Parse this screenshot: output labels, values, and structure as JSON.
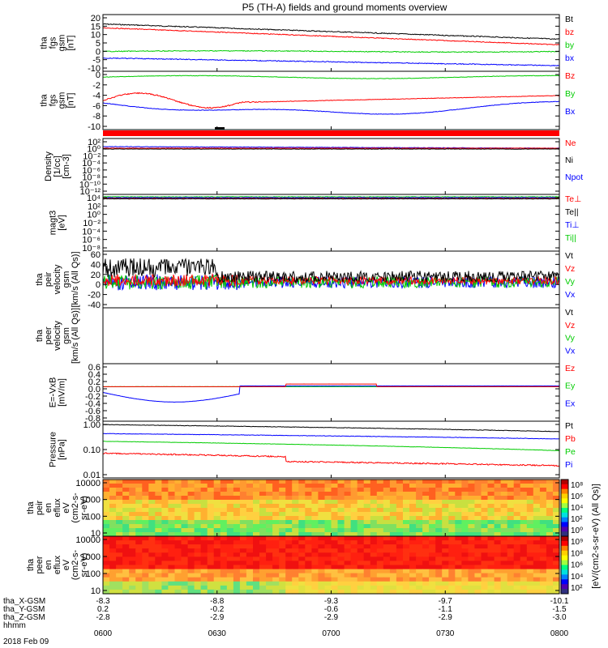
{
  "chart_data": {
    "type": "line",
    "title": "P5 (TH-A) fields and ground moments overview",
    "xlabel": "hhmm",
    "date": "2018 Feb 09",
    "x_ticks": [
      "0600",
      "0630",
      "0700",
      "0730",
      "0800"
    ],
    "ephemeris": [
      {
        "label": "tha_X-GSM",
        "values": [
          "-8.3",
          "-8.8",
          "-9.3",
          "-9.7",
          "-10.1"
        ]
      },
      {
        "label": "tha_Y-GSM",
        "values": [
          "0.2",
          "-0.2",
          "-0.6",
          "-1.1",
          "-1.5"
        ]
      },
      {
        "label": "tha_Z-GSM",
        "values": [
          "-2.8",
          "-2.9",
          "-2.9",
          "-2.9",
          "-3.0"
        ]
      }
    ],
    "panels": [
      {
        "id": "fgs_gsm",
        "ylabel": [
          "tha",
          "fgs",
          "gsm",
          "[nT]"
        ],
        "ylim": [
          -10,
          20
        ],
        "yticks": [
          "20",
          "15",
          "10",
          "5",
          "0",
          "-5",
          "-10"
        ],
        "legend": [
          {
            "name": "Bt",
            "color": "#000000"
          },
          {
            "name": "bz",
            "color": "#ff0000"
          },
          {
            "name": "by",
            "color": "#00cc00"
          },
          {
            "name": "bx",
            "color": "#0000ff"
          }
        ]
      },
      {
        "id": "fgs_dsl",
        "ylabel": [
          "tha",
          "fgs",
          "gsm",
          "[nT]"
        ],
        "ylim": [
          -11,
          1
        ],
        "yticks": [
          "0",
          "-2",
          "-4",
          "-6",
          "-8",
          "-10"
        ],
        "legend": [
          {
            "name": "Bz",
            "color": "#ff0000"
          },
          {
            "name": "By",
            "color": "#00cc00"
          },
          {
            "name": "Bx",
            "color": "#0000ff"
          }
        ]
      },
      {
        "id": "density",
        "ylabel": [
          "Density",
          "[1/cc]",
          "[cm-3]"
        ],
        "log": true,
        "yticks": [
          "10²",
          "10⁰",
          "10⁻²",
          "10⁻⁴",
          "10⁻⁶",
          "10⁻⁸",
          "10⁻¹⁰",
          "10⁻¹²"
        ],
        "legend": [
          {
            "name": "Ne",
            "color": "#ff0000"
          },
          {
            "name": "Ni",
            "color": "#000000"
          },
          {
            "name": "Npot",
            "color": "#0000ff"
          }
        ]
      },
      {
        "id": "temperature",
        "ylabel": [
          "magt3",
          "[eV]"
        ],
        "log": true,
        "yticks": [
          "10⁴",
          "10²",
          "10⁰",
          "10⁻²",
          "10⁻⁴",
          "10⁻⁶",
          "10⁻⁸"
        ],
        "legend": [
          {
            "name": "Te⊥",
            "color": "#ff0000"
          },
          {
            "name": "Te||",
            "color": "#000000"
          },
          {
            "name": "Ti⊥",
            "color": "#0000ff"
          },
          {
            "name": "Ti||",
            "color": "#00cc00"
          }
        ]
      },
      {
        "id": "peir_velocity",
        "ylabel": [
          "tha",
          "peir",
          "velocity",
          "gsm",
          "[km/s (All Qs)]"
        ],
        "ylim": [
          -40,
          60
        ],
        "yticks": [
          "60",
          "40",
          "20",
          "0",
          "-20",
          "-40"
        ],
        "legend": [
          {
            "name": "Vt",
            "color": "#000000"
          },
          {
            "name": "Vz",
            "color": "#ff0000"
          },
          {
            "name": "Vy",
            "color": "#00cc00"
          },
          {
            "name": "Vx",
            "color": "#0000ff"
          }
        ]
      },
      {
        "id": "peer_velocity",
        "ylabel": [
          "tha",
          "peer",
          "velocity",
          "gsm",
          "[km/s (All Qs)]"
        ],
        "yticks": [],
        "legend": [
          {
            "name": "Vt",
            "color": "#000000"
          },
          {
            "name": "Vz",
            "color": "#ff0000"
          },
          {
            "name": "Vy",
            "color": "#00cc00"
          },
          {
            "name": "Vx",
            "color": "#0000ff"
          }
        ]
      },
      {
        "id": "efield",
        "ylabel": [
          "E=-VxB",
          "[mV/m]"
        ],
        "ylim": [
          -0.9,
          0.6
        ],
        "yticks": [
          "0.6",
          "0.4",
          "0.2",
          "0.0",
          "-0.2",
          "-0.4",
          "-0.6",
          "-0.8"
        ],
        "legend": [
          {
            "name": "Ez",
            "color": "#ff0000"
          },
          {
            "name": "Ey",
            "color": "#00cc00"
          },
          {
            "name": "Ex",
            "color": "#0000ff"
          }
        ]
      },
      {
        "id": "pressure",
        "ylabel": [
          "Pressure",
          "[nPa]"
        ],
        "log": true,
        "ylim": [
          0.01,
          1.2
        ],
        "yticks": [
          "1.00",
          "0.10",
          "0.01"
        ],
        "legend": [
          {
            "name": "Pt",
            "color": "#000000"
          },
          {
            "name": "Pb",
            "color": "#ff0000"
          },
          {
            "name": "Pe",
            "color": "#00cc00"
          },
          {
            "name": "Pi",
            "color": "#0000ff"
          }
        ]
      },
      {
        "id": "peir_eflux",
        "type": "heatmap",
        "ylabel": [
          "tha",
          "peir",
          "en",
          "eflux",
          "eV",
          "(cm2-s-",
          "sr-eV)"
        ],
        "yticks": [
          "10000",
          "1000",
          "100",
          "10"
        ],
        "colorbar_ticks": [
          "10⁸",
          "10⁶",
          "10⁴",
          "10²",
          "10⁰"
        ]
      },
      {
        "id": "peer_eflux",
        "type": "heatmap",
        "ylabel": [
          "tha",
          "peer",
          "en",
          "eflux",
          "eV",
          "(cm2-s-",
          "sr-eV)"
        ],
        "yticks": [
          "10000",
          "1000",
          "100",
          "10"
        ],
        "colorbar_ticks": [
          "10⁹",
          "10⁸",
          "10⁶",
          "10⁴",
          "10²"
        ]
      }
    ],
    "colorbar_label": "[eV/(cm2-s-sr-eV) (All Qs)]"
  }
}
